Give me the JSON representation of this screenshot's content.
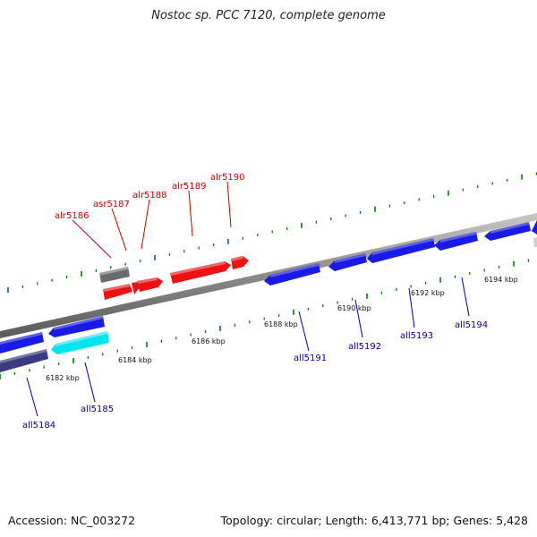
{
  "title": "Nostoc sp. PCC 7120, complete genome",
  "footer": {
    "accession": "Accession: NC_003272",
    "stats": "Topology: circular; Length: 6,413,771 bp; Genes: 5,428"
  },
  "colors": {
    "forward_gene": "#ee1111",
    "reverse_gene": "#1a1ae6",
    "selected_gene": "#00e5ee",
    "dark_gene": "#3a3a80",
    "gray_gene": "#6a6a6a",
    "ruler_tick": "#0a7a0a",
    "forward_label": "#cc0000",
    "reverse_label": "#0000aa"
  },
  "kbp_ticks": [
    "6182 kbp",
    "6184 kbp",
    "6186 kbp",
    "6188 kbp",
    "6190 kbp",
    "6192 kbp",
    "6194 kbp"
  ],
  "forward_labels": [
    "alr5186",
    "asr5187",
    "alr5188",
    "alr5189",
    "alr5190"
  ],
  "reverse_labels": [
    "all5184",
    "all5185",
    "all5191",
    "all5192",
    "all5193",
    "all5194"
  ]
}
